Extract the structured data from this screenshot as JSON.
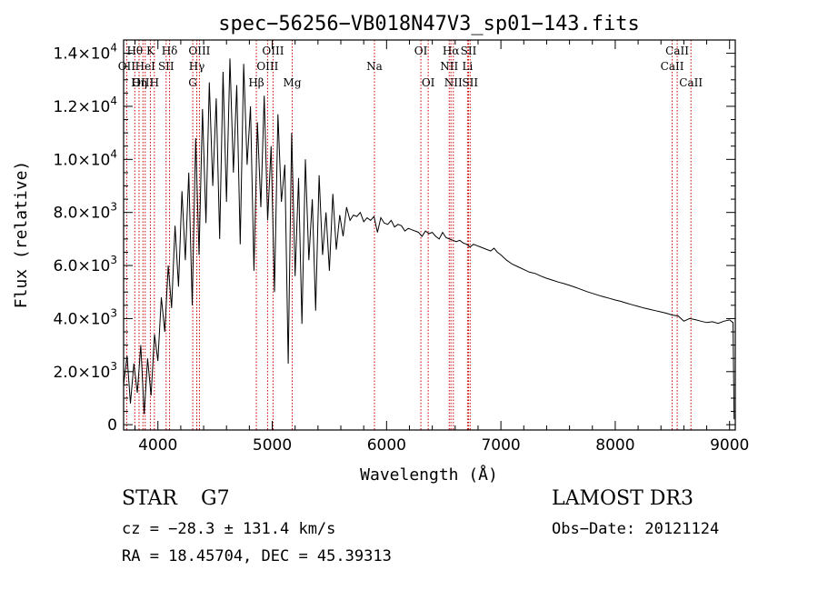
{
  "colors": {
    "axis": "#000000",
    "spectrum": "#000000",
    "line_marker": "#cc0000",
    "background": "#ffffff"
  },
  "chart_data": {
    "type": "line",
    "title": "spec−56256−VB018N47V3_sp01−143.fits",
    "xlabel": "Wavelength (Å)",
    "ylabel": "Flux (relative)",
    "xlim": [
      3700,
      9050
    ],
    "ylim": [
      -200,
      14500
    ],
    "xticks": [
      4000,
      5000,
      6000,
      7000,
      8000,
      9000
    ],
    "xtick_labels": [
      "4000",
      "5000",
      "6000",
      "7000",
      "8000",
      "9000"
    ],
    "yticks": [
      0,
      2000,
      4000,
      6000,
      8000,
      10000,
      12000,
      14000
    ],
    "ytick_labels": [
      {
        "mant": "0",
        "exp": ""
      },
      {
        "mant": "2.0×10",
        "exp": "3"
      },
      {
        "mant": "4.0×10",
        "exp": "3"
      },
      {
        "mant": "6.0×10",
        "exp": "3"
      },
      {
        "mant": "8.0×10",
        "exp": "3"
      },
      {
        "mant": "1.0×10",
        "exp": "4"
      },
      {
        "mant": "1.2×10",
        "exp": "4"
      },
      {
        "mant": "1.4×10",
        "exp": "4"
      }
    ],
    "series": [
      {
        "name": "flux",
        "x": [
          3700,
          3730,
          3760,
          3790,
          3820,
          3850,
          3880,
          3910,
          3940,
          3970,
          4000,
          4030,
          4060,
          4090,
          4120,
          4150,
          4180,
          4210,
          4240,
          4270,
          4300,
          4330,
          4360,
          4390,
          4420,
          4450,
          4480,
          4510,
          4540,
          4570,
          4600,
          4630,
          4660,
          4690,
          4720,
          4750,
          4780,
          4810,
          4840,
          4870,
          4900,
          4930,
          4960,
          4990,
          5020,
          5050,
          5080,
          5110,
          5140,
          5170,
          5200,
          5230,
          5260,
          5290,
          5320,
          5350,
          5380,
          5410,
          5440,
          5470,
          5500,
          5530,
          5560,
          5590,
          5620,
          5650,
          5680,
          5710,
          5740,
          5770,
          5800,
          5830,
          5860,
          5890,
          5920,
          5950,
          5980,
          6010,
          6040,
          6070,
          6100,
          6130,
          6160,
          6190,
          6220,
          6250,
          6280,
          6310,
          6340,
          6370,
          6400,
          6430,
          6460,
          6490,
          6520,
          6550,
          6580,
          6610,
          6640,
          6670,
          6700,
          6730,
          6760,
          6790,
          6820,
          6850,
          6880,
          6910,
          6940,
          6970,
          7000,
          7050,
          7100,
          7150,
          7200,
          7250,
          7300,
          7350,
          7400,
          7450,
          7500,
          7550,
          7600,
          7650,
          7700,
          7750,
          7800,
          7850,
          7900,
          7950,
          8000,
          8050,
          8100,
          8150,
          8200,
          8250,
          8300,
          8350,
          8400,
          8450,
          8500,
          8550,
          8600,
          8650,
          8700,
          8750,
          8800,
          8850,
          8900,
          8950,
          9000,
          9030,
          9040
        ],
        "y": [
          1500,
          2600,
          800,
          2300,
          1200,
          3000,
          400,
          2500,
          1100,
          3400,
          2400,
          4800,
          3500,
          6000,
          4400,
          7500,
          5200,
          8800,
          6200,
          9500,
          4500,
          10800,
          6400,
          11900,
          7600,
          12900,
          9000,
          12300,
          7000,
          13300,
          8400,
          13800,
          9500,
          12800,
          6800,
          13600,
          9800,
          12000,
          5800,
          11400,
          8200,
          12400,
          7700,
          10500,
          5000,
          11700,
          8400,
          9800,
          2300,
          11000,
          5600,
          9300,
          3800,
          10000,
          6200,
          8500,
          4300,
          9400,
          6400,
          8000,
          5800,
          8700,
          6600,
          7900,
          7100,
          8200,
          7700,
          7900,
          7850,
          8000,
          7650,
          7800,
          7700,
          7850,
          7250,
          7800,
          7600,
          7550,
          7700,
          7450,
          7550,
          7500,
          7300,
          7400,
          7350,
          7300,
          7250,
          7100,
          7300,
          7200,
          7250,
          7100,
          7000,
          7250,
          7050,
          7000,
          6950,
          6900,
          6950,
          6850,
          6800,
          6700,
          6800,
          6750,
          6700,
          6650,
          6600,
          6550,
          6650,
          6500,
          6400,
          6200,
          6050,
          5950,
          5850,
          5750,
          5700,
          5600,
          5520,
          5450,
          5380,
          5320,
          5250,
          5180,
          5100,
          5020,
          4950,
          4880,
          4820,
          4760,
          4700,
          4650,
          4580,
          4520,
          4460,
          4400,
          4350,
          4300,
          4250,
          4200,
          4130,
          4100,
          3900,
          4000,
          3960,
          3900,
          3850,
          3880,
          3820,
          3900,
          3950,
          3850,
          200
        ]
      }
    ],
    "lines": [
      {
        "label": "Hθ",
        "x": 3798,
        "row": 0
      },
      {
        "label": "OII",
        "x": 3727,
        "row": 1
      },
      {
        "label": "OIII",
        "x": 3869,
        "row": 2
      },
      {
        "label": "K",
        "x": 3934,
        "row": 0
      },
      {
        "label": "HeI",
        "x": 3889,
        "row": 1
      },
      {
        "label": "Hη",
        "x": 3835,
        "row": 2
      },
      {
        "label": "H",
        "x": 3969,
        "row": 2
      },
      {
        "label": "Hδ",
        "x": 4102,
        "row": 0
      },
      {
        "label": "SII",
        "x": 4072,
        "row": 1
      },
      {
        "label": "OIII",
        "x": 4363,
        "row": 0
      },
      {
        "label": "Hγ",
        "x": 4340,
        "row": 1
      },
      {
        "label": "G",
        "x": 4305,
        "row": 2
      },
      {
        "label": "OIII",
        "x": 5007,
        "row": 0
      },
      {
        "label": "OIII",
        "x": 4959,
        "row": 1
      },
      {
        "label": "Hβ",
        "x": 4861,
        "row": 2
      },
      {
        "label": "Mg",
        "x": 5175,
        "row": 2
      },
      {
        "label": "Na",
        "x": 5894,
        "row": 1
      },
      {
        "label": "OI",
        "x": 6300,
        "row": 0
      },
      {
        "label": "OI",
        "x": 6364,
        "row": 2
      },
      {
        "label": "Hα",
        "x": 6563,
        "row": 0
      },
      {
        "label": "SII",
        "x": 6717,
        "row": 0
      },
      {
        "label": "NII",
        "x": 6548,
        "row": 1
      },
      {
        "label": "Li",
        "x": 6708,
        "row": 1
      },
      {
        "label": "NII",
        "x": 6584,
        "row": 2
      },
      {
        "label": "SII",
        "x": 6731,
        "row": 2
      },
      {
        "label": "CaII",
        "x": 8542,
        "row": 0
      },
      {
        "label": "CaII",
        "x": 8498,
        "row": 1
      },
      {
        "label": "CaII",
        "x": 8662,
        "row": 2
      }
    ]
  },
  "info": {
    "object_class": "STAR",
    "subclass": "G7",
    "survey": "LAMOST DR3",
    "redshift": "cz = −28.3 ± 131.4 km/s",
    "obs_date": "Obs−Date: 20121124",
    "coords": "RA =  18.45704, DEC =  45.39313"
  }
}
